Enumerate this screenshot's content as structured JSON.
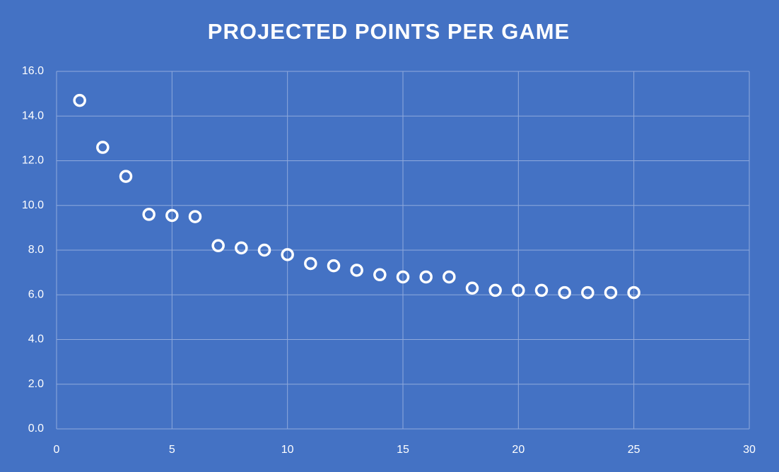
{
  "chart_data": {
    "type": "scatter",
    "title": "PROJECTED POINTS PER GAME",
    "x": [
      1,
      2,
      3,
      4,
      5,
      6,
      7,
      8,
      9,
      10,
      11,
      12,
      13,
      14,
      15,
      16,
      17,
      18,
      19,
      20,
      21,
      22,
      23,
      24,
      25
    ],
    "values": [
      14.7,
      12.6,
      11.3,
      9.6,
      9.55,
      9.5,
      8.2,
      8.1,
      8.0,
      7.8,
      7.4,
      7.3,
      7.1,
      6.9,
      6.8,
      6.8,
      6.8,
      6.3,
      6.2,
      6.2,
      6.2,
      6.1,
      6.1,
      6.1,
      6.1
    ],
    "color": "#ffffff",
    "background": "#4472c4",
    "xlim": [
      0,
      30
    ],
    "xticks": [
      0,
      5,
      10,
      15,
      20,
      25,
      30
    ],
    "ylim": [
      0,
      16
    ],
    "yticks": [
      {
        "value": 0,
        "label": "0.0"
      },
      {
        "value": 2,
        "label": "2.0"
      },
      {
        "value": 4,
        "label": "4.0"
      },
      {
        "value": 6,
        "label": "6.0"
      },
      {
        "value": 8,
        "label": "8.0"
      },
      {
        "value": 10,
        "label": "10.0"
      },
      {
        "value": 12,
        "label": "12.0"
      },
      {
        "value": 14,
        "label": "14.0"
      },
      {
        "value": 16,
        "label": "16.0"
      }
    ],
    "grid": true
  }
}
